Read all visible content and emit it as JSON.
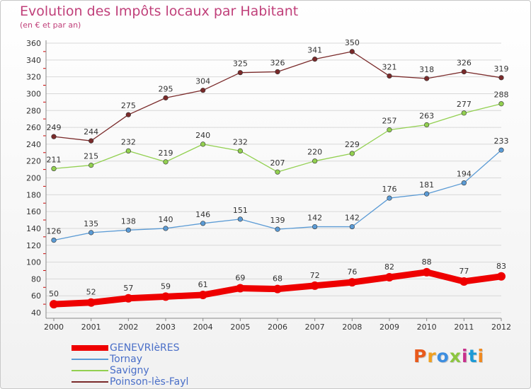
{
  "title": "Evolution des Impôts locaux par Habitant",
  "subtitle": "(en € et par an)",
  "logo_text": "Proxiti",
  "logo_colors": [
    "#e85a1c",
    "#f0a020",
    "#3d8ee0",
    "#8cc63f",
    "#c8308c",
    "#1c9ad6",
    "#f08a20"
  ],
  "chart_data": {
    "type": "line",
    "x": [
      "2000",
      "2001",
      "2002",
      "2003",
      "2004",
      "2005",
      "2006",
      "2007",
      "2008",
      "2009",
      "2010",
      "2011",
      "2012"
    ],
    "ylim": [
      40,
      360
    ],
    "yticks": [
      40,
      60,
      80,
      100,
      120,
      140,
      160,
      180,
      200,
      220,
      240,
      260,
      280,
      300,
      320,
      340,
      360
    ],
    "grid": true,
    "legend_position": "bottom-left",
    "series": [
      {
        "name": "GENEVRIèRES",
        "color": "#ee0000",
        "values": [
          50,
          52,
          57,
          59,
          61,
          69,
          68,
          72,
          76,
          82,
          88,
          77,
          83
        ]
      },
      {
        "name": "Tornay",
        "color": "#5b9bd5",
        "values": [
          126,
          135,
          138,
          140,
          146,
          151,
          139,
          142,
          142,
          176,
          181,
          194,
          233
        ]
      },
      {
        "name": "Savigny",
        "color": "#92d050",
        "values": [
          211,
          215,
          232,
          219,
          240,
          232,
          207,
          220,
          229,
          257,
          263,
          277,
          288
        ]
      },
      {
        "name": "Poinson-lès-Fayl",
        "color": "#7a2a2a",
        "values": [
          249,
          244,
          275,
          295,
          304,
          325,
          326,
          341,
          350,
          321,
          318,
          326,
          319
        ]
      }
    ]
  }
}
